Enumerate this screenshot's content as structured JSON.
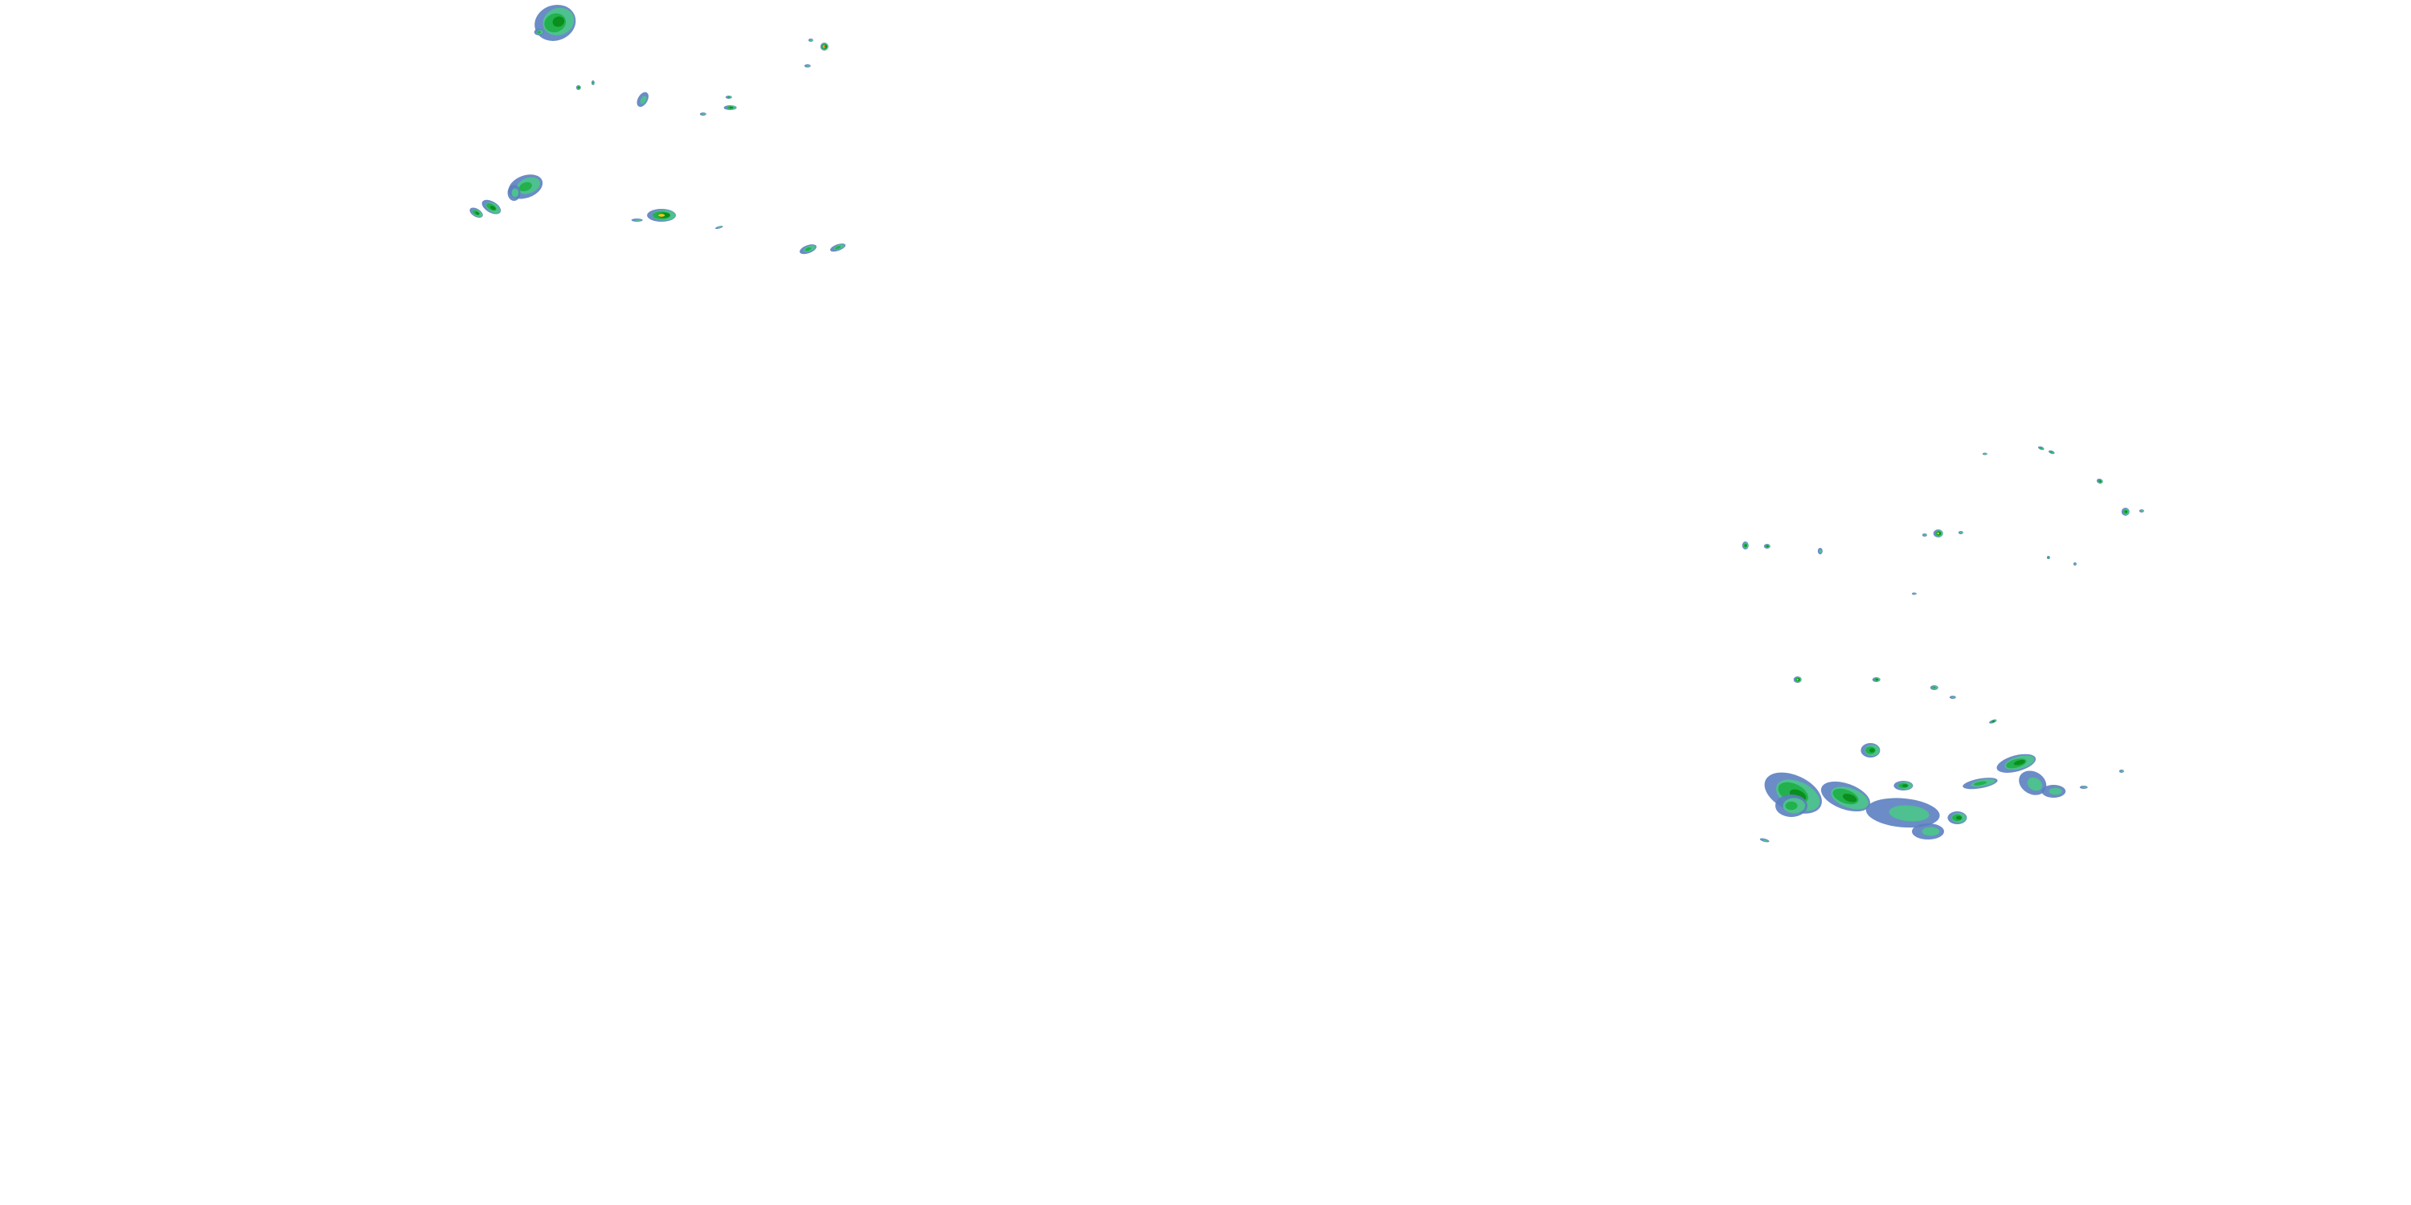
{
  "map": {
    "layer": "precipitation-radar-overlay",
    "background_color": "#ffffff",
    "palette": {
      "light": "#5b7fc0",
      "light_moderate": "#4fc08f",
      "moderate": "#22b14c",
      "heavy": "#0a8f1c",
      "very_heavy": "#f2c417",
      "extreme": "#e8321e"
    }
  }
}
